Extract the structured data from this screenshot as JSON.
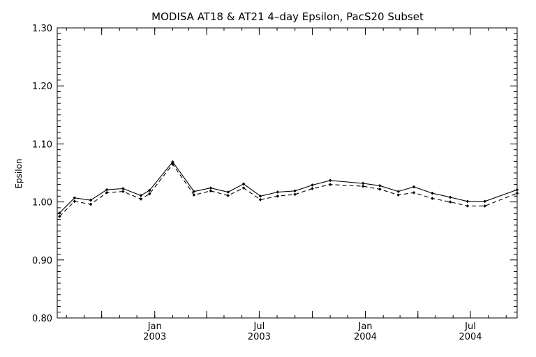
{
  "chart_data": {
    "type": "line",
    "title": "MODISA AT18 & AT21 4–day Epsilon, PacS20 Subset",
    "xlabel": "",
    "ylabel": "Epsilon",
    "ylim": [
      0.8,
      1.3
    ],
    "yticks": [
      "0.80",
      "0.90",
      "1.00",
      "1.10",
      "1.20",
      "1.30"
    ],
    "y_minor_step": 0.01,
    "xlim": [
      "2002-07-16",
      "2004-09-20"
    ],
    "x_major_ticks": [
      {
        "date": "2002-10-01",
        "label": "",
        "sublabel": ""
      },
      {
        "date": "2003-01-01",
        "label": "Jan",
        "sublabel": "2003"
      },
      {
        "date": "2003-04-01",
        "label": "",
        "sublabel": ""
      },
      {
        "date": "2003-07-01",
        "label": "Jul",
        "sublabel": "2003"
      },
      {
        "date": "2003-10-01",
        "label": "",
        "sublabel": ""
      },
      {
        "date": "2004-01-01",
        "label": "Jan",
        "sublabel": "2004"
      },
      {
        "date": "2004-04-01",
        "label": "",
        "sublabel": ""
      },
      {
        "date": "2004-07-01",
        "label": "Jul",
        "sublabel": "2004"
      }
    ],
    "grid": false,
    "series": [
      {
        "line_style": "solid",
        "x": [
          "2002-07-20",
          "2002-08-15",
          "2002-09-12",
          "2002-10-10",
          "2002-11-07",
          "2002-12-08",
          "2002-12-23",
          "2003-02-01",
          "2003-03-10",
          "2003-04-08",
          "2003-05-08",
          "2003-06-04",
          "2003-07-03",
          "2003-08-02",
          "2003-09-01",
          "2003-10-01",
          "2003-11-01",
          "2003-12-28",
          "2004-01-26",
          "2004-02-27",
          "2004-03-25",
          "2004-04-26",
          "2004-05-27",
          "2004-06-26",
          "2004-07-26",
          "2004-09-20"
        ],
        "values": [
          0.981,
          1.007,
          1.003,
          1.021,
          1.023,
          1.011,
          1.02,
          1.069,
          1.018,
          1.024,
          1.017,
          1.031,
          1.01,
          1.017,
          1.019,
          1.029,
          1.037,
          1.032,
          1.028,
          1.018,
          1.026,
          1.015,
          1.008,
          1.001,
          1.001,
          1.021
        ]
      },
      {
        "line_style": "dashed",
        "x": [
          "2002-07-20",
          "2002-08-15",
          "2002-09-12",
          "2002-10-10",
          "2002-11-07",
          "2002-12-08",
          "2002-12-23",
          "2003-02-01",
          "2003-03-10",
          "2003-04-08",
          "2003-05-08",
          "2003-06-04",
          "2003-07-03",
          "2003-08-02",
          "2003-09-01",
          "2003-10-01",
          "2003-11-01",
          "2003-12-28",
          "2004-01-26",
          "2004-02-27",
          "2004-03-25",
          "2004-04-26",
          "2004-05-27",
          "2004-06-26",
          "2004-07-26",
          "2004-09-20"
        ],
        "values": [
          0.975,
          1.001,
          0.996,
          1.016,
          1.018,
          1.005,
          1.014,
          1.065,
          1.012,
          1.019,
          1.011,
          1.024,
          1.004,
          1.01,
          1.013,
          1.023,
          1.03,
          1.027,
          1.022,
          1.012,
          1.016,
          1.006,
          1.0,
          0.993,
          0.993,
          1.015
        ]
      }
    ]
  }
}
